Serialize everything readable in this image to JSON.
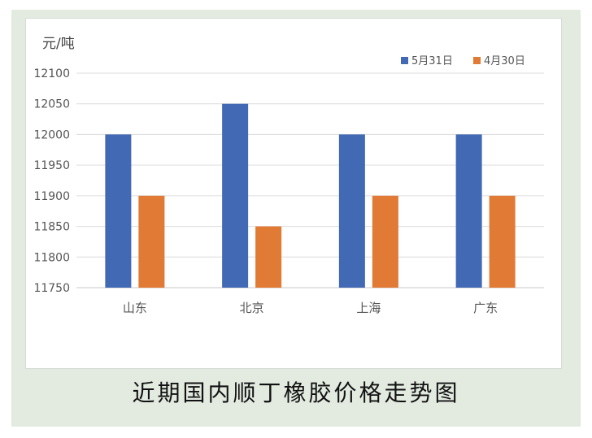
{
  "chart_data": {
    "type": "bar",
    "unit_label": "元/吨",
    "categories": [
      "山东",
      "北京",
      "上海",
      "广东"
    ],
    "series": [
      {
        "name": "5月31日",
        "values": [
          12000,
          12050,
          12000,
          12000
        ],
        "color": "#4169b4"
      },
      {
        "name": "4月30日",
        "values": [
          11900,
          11850,
          11900,
          11900
        ],
        "color": "#e07a35"
      }
    ],
    "ylim": [
      11750,
      12100
    ],
    "yticks": [
      11750,
      11800,
      11850,
      11900,
      11950,
      12000,
      12050,
      12100
    ],
    "grid": true,
    "legend": "top-right"
  },
  "caption": "近期国内顺丁橡胶价格走势图"
}
